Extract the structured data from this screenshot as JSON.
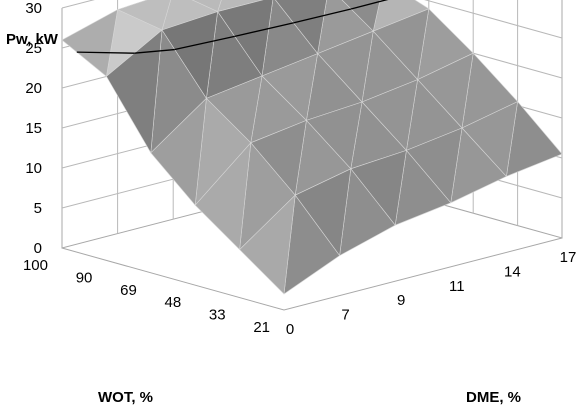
{
  "chart_data": {
    "type": "surface",
    "title": "",
    "zlabel": "Pw, kW",
    "xlabel": "DME, %",
    "ylabel": "WOT, %",
    "z_ticks": [
      "0",
      "5",
      "10",
      "15",
      "20",
      "25",
      "30"
    ],
    "zlim": [
      0,
      30
    ],
    "x_categories": [
      "0",
      "7",
      "9",
      "11",
      "14",
      "17"
    ],
    "y_categories": [
      "21",
      "33",
      "48",
      "69",
      "90",
      "100"
    ],
    "values": [
      [
        2,
        5,
        7,
        8,
        9.5,
        10.5
      ],
      [
        6,
        11,
        12.5,
        13,
        14,
        15.5
      ],
      [
        10,
        16,
        17,
        17.5,
        18.5,
        20
      ],
      [
        15,
        20,
        21,
        22,
        23,
        24
      ],
      [
        23,
        27,
        27.5,
        27.5,
        27,
        26
      ],
      [
        26,
        28,
        28.5,
        28.5,
        28,
        26.5
      ]
    ],
    "highlight_contour": "25",
    "grid": true,
    "legend": "none"
  }
}
